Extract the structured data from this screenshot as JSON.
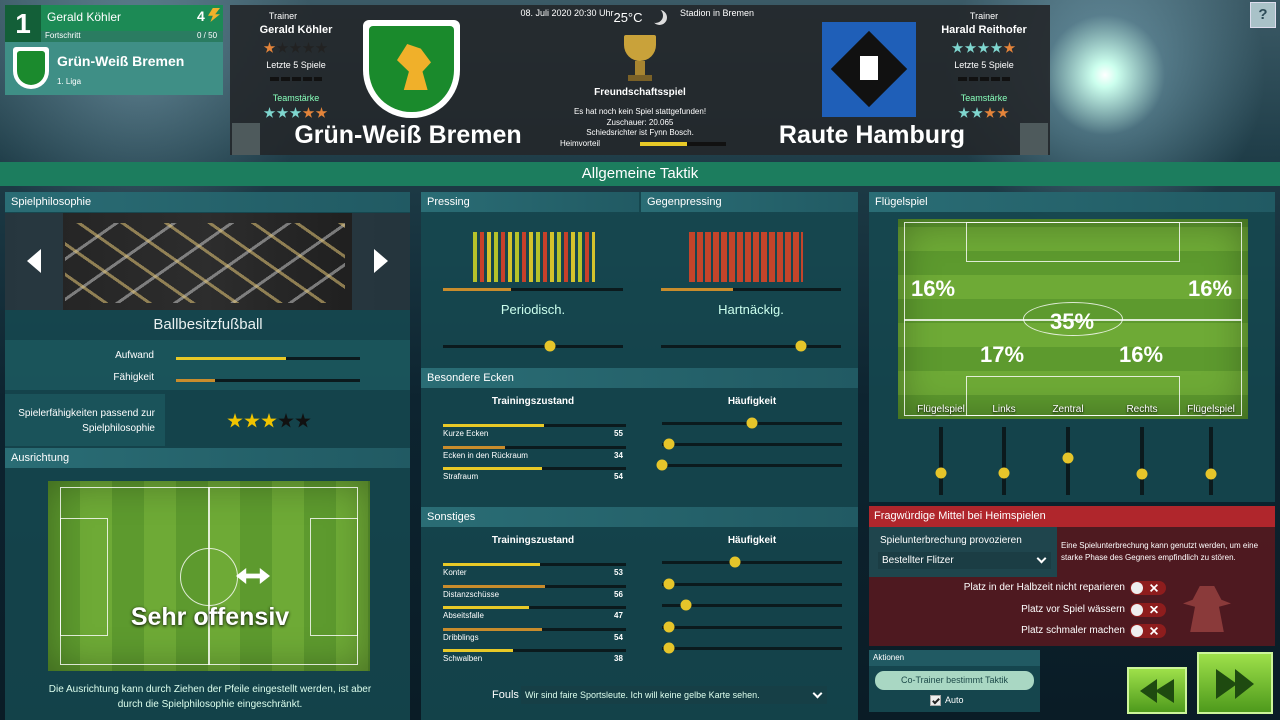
{
  "manager_card": {
    "rank": 1,
    "name": "Gerald Köhler",
    "points": 4,
    "progress_label": "Fortschritt",
    "progress": "0 / 50",
    "club": "Grün-Weiß Bremen",
    "league": "1. Liga"
  },
  "help": "?",
  "match": {
    "datetime": "08. Juli 2020 20:30 Uhr",
    "temperature": "25°C",
    "venue": "Stadion in Bremen",
    "competition": "Freundschaftsspiel",
    "status": "Es hat noch kein Spiel stattgefunden!",
    "spectators": "Zuschauer: 20.065",
    "referee": "Schiedsrichter ist Fynn Bosch.",
    "home_advantage": "Heimvorteil",
    "home": {
      "trainer_label": "Trainer",
      "trainer": "Gerald Köhler",
      "last5_label": "Letzte 5 Spiele",
      "strength_label": "Teamstärke",
      "team": "Grün-Weiß Bremen"
    },
    "away": {
      "trainer_label": "Trainer",
      "trainer": "Harald Reithofer",
      "last5_label": "Letzte 5 Spiele",
      "strength_label": "Teamstärke",
      "team": "Raute Hamburg"
    }
  },
  "page_title": "Allgemeine Taktik",
  "philosophy": {
    "header": "Spielphilosophie",
    "name": "Ballbesitzfußball",
    "effort_label": "Aufwand",
    "skill_label": "Fähigkeit",
    "fit_label": "Spielerfähigkeiten passend zur Spielphilosophie"
  },
  "orientation": {
    "header": "Ausrichtung",
    "value": "Sehr offensiv",
    "note": "Die Ausrichtung kann durch Ziehen der Pfeile eingestellt werden, ist aber durch die Spielphilosophie eingeschränkt."
  },
  "pressing": {
    "header": "Pressing",
    "value": "Periodisch."
  },
  "gegenpressing": {
    "header": "Gegenpressing",
    "value": "Hartnäckig."
  },
  "corners": {
    "header": "Besondere Ecken",
    "col_training": "Trainingszustand",
    "col_frequency": "Häufigkeit",
    "rows": [
      {
        "label": "Kurze Ecken",
        "training": 55
      },
      {
        "label": "Ecken in den Rückraum",
        "training": 34
      },
      {
        "label": "Strafraum",
        "training": 54
      }
    ]
  },
  "misc": {
    "header": "Sonstiges",
    "col_training": "Trainingszustand",
    "col_frequency": "Häufigkeit",
    "rows": [
      {
        "label": "Konter",
        "training": 53
      },
      {
        "label": "Distanzschüsse",
        "training": 56
      },
      {
        "label": "Abseitsfalle",
        "training": 47
      },
      {
        "label": "Dribblings",
        "training": 54
      },
      {
        "label": "Schwalben",
        "training": 38
      }
    ],
    "fouls_label": "Fouls",
    "fouls_value": "Wir sind faire Sportsleute. Ich will keine gelbe Karte sehen."
  },
  "wing_play": {
    "header": "Flügelspiel",
    "shares": {
      "left_wing": "16%",
      "right_wing": "16%",
      "center": "35%",
      "left": "17%",
      "right": "16%"
    },
    "lanes": [
      "Flügelspiel",
      "Links",
      "Zentral",
      "Rechts",
      "Flügelspiel"
    ]
  },
  "home_tricks": {
    "header": "Fragwürdige Mittel bei Heimspielen",
    "interruption_label": "Spielunterbrechung provozieren",
    "interruption_value": "Bestellter Flitzer",
    "description": "Eine Spielunterbrechung kann genutzt werden, um eine starke Phase des Gegners empfindlich zu stören.",
    "toggles": [
      "Platz in der Halbzeit nicht reparieren",
      "Platz vor Spiel wässern",
      "Platz schmaler machen"
    ]
  },
  "actions": {
    "header": "Aktionen",
    "button": "Co-Trainer bestimmt Taktik",
    "auto": "Auto"
  }
}
